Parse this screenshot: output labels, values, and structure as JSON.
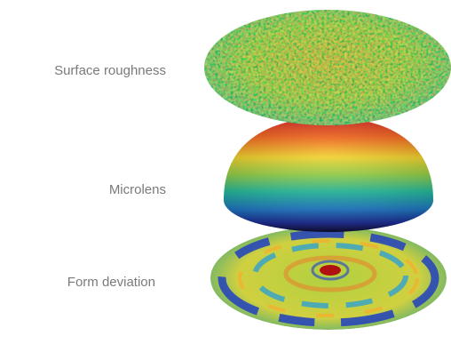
{
  "labels": [
    "Surface roughness",
    "Microlens",
    "Form deviation"
  ]
}
